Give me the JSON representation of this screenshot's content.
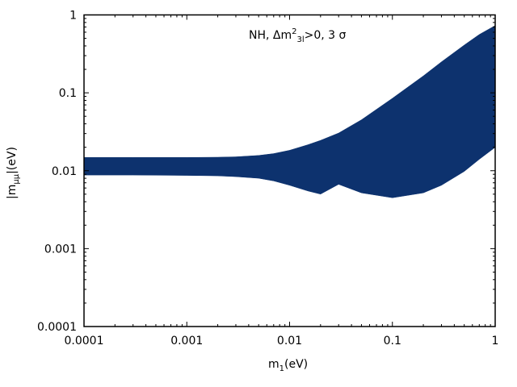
{
  "chart_data": {
    "type": "area",
    "xlabel": "m",
    "xlabel_sub": "1",
    "xlabel_unit": "(eV)",
    "ylabel": "|m",
    "ylabel_sub": "μμ",
    "ylabel_unit": "|(eV)",
    "xscale": "log",
    "yscale": "log",
    "xlim": [
      0.0001,
      1
    ],
    "ylim": [
      0.0001,
      1
    ],
    "x_ticks": [
      0.0001,
      0.001,
      0.01,
      0.1,
      1
    ],
    "x_tick_labels": [
      "0.0001",
      "0.001",
      "0.01",
      "0.1",
      "1"
    ],
    "y_ticks": [
      0.0001,
      0.001,
      0.01,
      0.1,
      1
    ],
    "y_tick_labels": [
      "0.0001",
      "0.001",
      "0.01",
      "0.1",
      "1"
    ],
    "grid": false,
    "annotation": {
      "prefix": "NH, Δm",
      "sup": "2",
      "sub": "3l",
      "suffix": ">0, 3 σ"
    },
    "fill_color": "#0d326e",
    "series": [
      {
        "x": [
          0.0001,
          0.0003,
          0.001,
          0.002,
          0.003,
          0.005,
          0.007,
          0.01,
          0.015,
          0.02,
          0.03,
          0.05,
          0.1,
          0.2,
          0.3,
          0.5,
          0.7,
          1
        ],
        "upper": [
          0.0148,
          0.0148,
          0.0148,
          0.0149,
          0.0151,
          0.0157,
          0.0166,
          0.0183,
          0.0215,
          0.0245,
          0.0305,
          0.045,
          0.085,
          0.165,
          0.25,
          0.41,
          0.56,
          0.73
        ],
        "lower": [
          0.0088,
          0.0088,
          0.0087,
          0.0086,
          0.0084,
          0.008,
          0.0074,
          0.0065,
          0.0055,
          0.005,
          0.0067,
          0.0052,
          0.0045,
          0.0052,
          0.0065,
          0.0098,
          0.014,
          0.02
        ]
      }
    ]
  }
}
